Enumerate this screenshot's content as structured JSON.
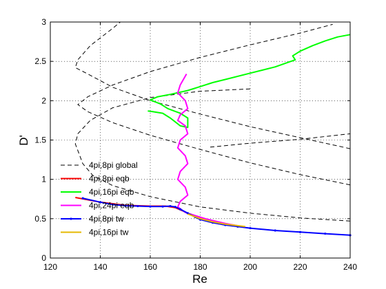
{
  "chart_data": {
    "type": "line",
    "xlabel": "Re",
    "ylabel": "D'",
    "xlim": [
      120,
      240
    ],
    "ylim": [
      0,
      3
    ],
    "xticks": [
      "120",
      "140",
      "160",
      "180",
      "200",
      "220",
      "240"
    ],
    "yticks": [
      "0",
      "0.5",
      "1",
      "1.5",
      "2",
      "2.5",
      "3"
    ],
    "grid": true,
    "legend_position": "bottom-left",
    "series": [
      {
        "name": "4pi,8pi global",
        "color": "#000000",
        "dash": "6 4",
        "segments": [
          [
            [
              240,
              0.93
            ],
            [
              220,
              1.06
            ],
            [
              200,
              1.21
            ],
            [
              180,
              1.38
            ],
            [
              160,
              1.56
            ],
            [
              145,
              1.72
            ],
            [
              135,
              1.86
            ],
            [
              131,
              1.95
            ],
            [
              135,
              2.05
            ],
            [
              145,
              2.2
            ],
            [
              160,
              2.37
            ],
            [
              180,
              2.55
            ],
            [
              200,
              2.71
            ],
            [
              220,
              2.86
            ],
            [
              233,
              2.97
            ]
          ],
          [
            [
              240,
              1.39
            ],
            [
              220,
              1.53
            ],
            [
              200,
              1.67
            ],
            [
              180,
              1.83
            ],
            [
              160,
              2.0
            ],
            [
              145,
              2.17
            ],
            [
              135,
              2.34
            ],
            [
              130,
              2.42
            ],
            [
              131,
              2.52
            ],
            [
              136,
              2.7
            ],
            [
              145,
              2.92
            ],
            [
              148,
              3.0
            ]
          ],
          [
            [
              240,
              0.47
            ],
            [
              220,
              0.51
            ],
            [
              200,
              0.57
            ],
            [
              180,
              0.65
            ],
            [
              160,
              0.78
            ],
            [
              145,
              0.92
            ],
            [
              137,
              1.05
            ],
            [
              133,
              1.2
            ],
            [
              130,
              1.45
            ],
            [
              131,
              1.58
            ],
            [
              136,
              1.75
            ],
            [
              145,
              1.91
            ],
            [
              160,
              2.04
            ],
            [
              180,
              2.12
            ],
            [
              200,
              2.15
            ]
          ],
          [
            [
              184,
              1.41
            ],
            [
              200,
              1.46
            ],
            [
              220,
              1.51
            ],
            [
              240,
              1.58
            ]
          ]
        ]
      },
      {
        "name": "4pi,8pi eqb",
        "color": "#ff0000",
        "dash": "",
        "segments": [
          [
            [
              130,
              0.77
            ],
            [
              140,
              0.71
            ],
            [
              150,
              0.67
            ],
            [
              160,
              0.66
            ],
            [
              166,
              0.66
            ],
            [
              170,
              0.64
            ],
            [
              173,
              0.6
            ],
            [
              176,
              0.55
            ],
            [
              180,
              0.5
            ],
            [
              185,
              0.46
            ],
            [
              190,
              0.43
            ]
          ]
        ]
      },
      {
        "name": "4pi,16pi eqb",
        "color": "#00ff00",
        "dash": "",
        "segments": [
          [
            [
              159,
              1.87
            ],
            [
              161,
              1.86
            ],
            [
              165,
              1.84
            ],
            [
              168,
              1.78
            ],
            [
              170,
              1.73
            ],
            [
              172,
              1.68
            ],
            [
              175,
              1.66
            ],
            [
              175,
              1.78
            ],
            [
              172,
              1.84
            ],
            [
              167,
              1.9
            ],
            [
              164,
              1.96
            ],
            [
              160,
              2.01
            ],
            [
              163,
              2.05
            ],
            [
              168,
              2.08
            ],
            [
              175,
              2.13
            ],
            [
              180,
              2.18
            ],
            [
              185,
              2.23
            ],
            [
              190,
              2.27
            ],
            [
              200,
              2.35
            ],
            [
              210,
              2.43
            ],
            [
              218,
              2.52
            ],
            [
              217,
              2.57
            ],
            [
              220,
              2.63
            ],
            [
              225,
              2.7
            ],
            [
              230,
              2.76
            ],
            [
              235,
              2.81
            ],
            [
              240,
              2.84
            ]
          ]
        ]
      },
      {
        "name": "4pi,24pi eqb",
        "color": "#ff00ff",
        "dash": "",
        "segments": [
          [
            [
              174.5,
              2.34
            ],
            [
              172,
              2.2
            ],
            [
              171,
              2.1
            ],
            [
              174,
              2.0
            ],
            [
              175,
              1.9
            ],
            [
              172,
              1.82
            ],
            [
              171,
              1.75
            ],
            [
              174,
              1.68
            ],
            [
              175,
              1.58
            ],
            [
              172,
              1.5
            ],
            [
              171,
              1.4
            ],
            [
              174,
              1.3
            ],
            [
              175,
              1.2
            ],
            [
              172,
              1.1
            ],
            [
              171,
              1.0
            ],
            [
              174,
              0.9
            ],
            [
              175,
              0.8
            ],
            [
              172,
              0.72
            ],
            [
              171,
              0.65
            ],
            [
              174,
              0.58
            ],
            [
              178,
              0.54
            ],
            [
              182,
              0.5
            ],
            [
              186,
              0.47
            ],
            [
              190,
              0.44
            ],
            [
              195,
              0.41
            ]
          ]
        ]
      },
      {
        "name": "4pi,8pi tw",
        "color": "#0000ff",
        "dash": "",
        "markers": true,
        "segments": [
          [
            [
              133,
              0.76
            ],
            [
              140,
              0.71
            ],
            [
              145,
              0.68
            ],
            [
              150,
              0.665
            ],
            [
              155,
              0.66
            ],
            [
              160,
              0.655
            ],
            [
              165,
              0.655
            ],
            [
              168,
              0.66
            ],
            [
              170,
              0.65
            ],
            [
              172,
              0.62
            ],
            [
              175,
              0.57
            ],
            [
              178,
              0.52
            ],
            [
              180,
              0.49
            ],
            [
              185,
              0.45
            ],
            [
              190,
              0.42
            ],
            [
              195,
              0.4
            ],
            [
              200,
              0.38
            ],
            [
              210,
              0.35
            ],
            [
              220,
              0.33
            ],
            [
              230,
              0.31
            ],
            [
              240,
              0.29
            ]
          ]
        ]
      },
      {
        "name": "4pi,16pi tw",
        "color": "#e6b800",
        "dash": "",
        "segments": [
          [
            [
              175,
              0.56
            ],
            [
              180,
              0.5
            ],
            [
              185,
              0.46
            ],
            [
              190,
              0.43
            ],
            [
              198,
              0.4
            ]
          ]
        ]
      }
    ]
  }
}
